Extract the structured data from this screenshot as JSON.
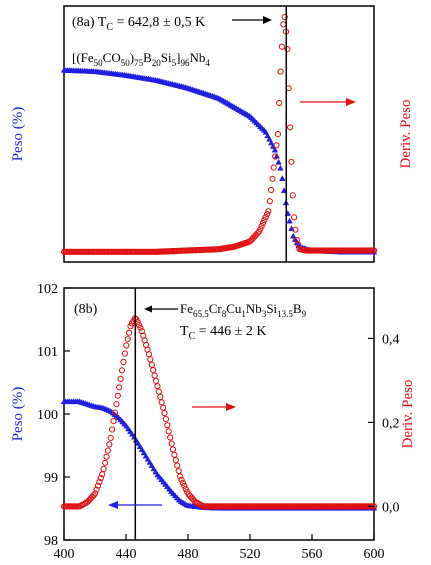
{
  "colors": {
    "weight": "#1f1fe0",
    "deriv": "#e01010",
    "axis": "#000000"
  },
  "chart_data": [
    {
      "type": "scatter",
      "panel_label": "(8a)",
      "tc_prefix": "T",
      "tc_sub": "C",
      "tc_value": " = 642,8 ± 0,5 K",
      "composition": [
        {
          "t": "[(Fe",
          "sub": false
        },
        {
          "t": "50",
          "sub": true
        },
        {
          "t": "CO",
          "sub": false
        },
        {
          "t": "50",
          "sub": true
        },
        {
          "t": ")",
          "sub": false
        },
        {
          "t": "75",
          "sub": true
        },
        {
          "t": "B",
          "sub": false
        },
        {
          "t": "20",
          "sub": true
        },
        {
          "t": "Si",
          "sub": false
        },
        {
          "t": "5",
          "sub": true
        },
        {
          "t": "]",
          "sub": false
        },
        {
          "t": "96",
          "sub": true
        },
        {
          "t": "Nb",
          "sub": false
        },
        {
          "t": "4",
          "sub": true
        }
      ],
      "ylabel": "Peso (%)",
      "y2label": "Deriv. Peso",
      "xlim": [
        0,
        1
      ],
      "vline_x": 0.717,
      "series": [
        {
          "name": "Peso",
          "marker": "filled-triangle",
          "color_key": "weight",
          "x": [
            0.0,
            0.1,
            0.2,
            0.3,
            0.4,
            0.5,
            0.6,
            0.65,
            0.68,
            0.7,
            0.72,
            0.74,
            0.76,
            0.8,
            0.9,
            1.0
          ],
          "y": [
            0.75,
            0.745,
            0.73,
            0.71,
            0.68,
            0.64,
            0.57,
            0.51,
            0.44,
            0.36,
            0.2,
            0.1,
            0.06,
            0.045,
            0.04,
            0.04
          ]
        },
        {
          "name": "Deriv. Peso",
          "marker": "open-circle",
          "color_key": "deriv",
          "x": [
            0.0,
            0.1,
            0.2,
            0.3,
            0.4,
            0.5,
            0.55,
            0.6,
            0.63,
            0.66,
            0.69,
            0.7,
            0.71,
            0.72,
            0.73,
            0.74,
            0.75,
            0.76,
            0.78,
            0.8,
            0.9,
            1.0
          ],
          "y": [
            0.04,
            0.04,
            0.04,
            0.04,
            0.045,
            0.05,
            0.06,
            0.08,
            0.12,
            0.2,
            0.5,
            0.78,
            0.98,
            0.85,
            0.5,
            0.2,
            0.09,
            0.05,
            0.045,
            0.045,
            0.045,
            0.045
          ]
        }
      ]
    },
    {
      "type": "scatter",
      "panel_label": "(8b)",
      "tc_prefix": "T",
      "tc_sub": "C",
      "tc_value": " = 446 ± 2 K",
      "composition": [
        {
          "t": "Fe",
          "sub": false
        },
        {
          "t": "65.5",
          "sub": true
        },
        {
          "t": "Cr",
          "sub": false
        },
        {
          "t": "8",
          "sub": true
        },
        {
          "t": "Cu",
          "sub": false
        },
        {
          "t": "1",
          "sub": true
        },
        {
          "t": "Nb",
          "sub": false
        },
        {
          "t": "3",
          "sub": true
        },
        {
          "t": "Si",
          "sub": false
        },
        {
          "t": "13.5",
          "sub": true
        },
        {
          "t": "B",
          "sub": false
        },
        {
          "t": "9",
          "sub": true
        }
      ],
      "xlabel": "",
      "ylabel": "Peso (%)",
      "y2label": "Deriv. Peso",
      "xlim": [
        400,
        600
      ],
      "ylim": [
        98,
        102
      ],
      "y2lim": [
        -0.08,
        0.52
      ],
      "x_ticks": [
        400,
        440,
        480,
        520,
        560,
        600
      ],
      "x_tick_labels": [
        "400",
        "440",
        "480",
        "520",
        "560",
        "600"
      ],
      "y_ticks": [
        98,
        99,
        100,
        101,
        102
      ],
      "y_tick_labels": [
        "98",
        "99",
        "100",
        "101",
        "102"
      ],
      "y2_ticks": [
        0.0,
        0.2,
        0.4
      ],
      "y2_tick_labels": [
        "0,0",
        "0,2",
        "0,4"
      ],
      "vline_x": 446,
      "series": [
        {
          "name": "Peso",
          "marker": "filled-triangle",
          "color_key": "weight",
          "x": [
            400,
            410,
            420,
            425,
            430,
            435,
            440,
            445,
            450,
            455,
            460,
            465,
            470,
            475,
            480,
            490,
            500,
            520,
            540,
            560,
            580,
            600
          ],
          "y": [
            100.2,
            100.2,
            100.12,
            100.1,
            100.05,
            99.95,
            99.82,
            99.65,
            99.45,
            99.25,
            99.05,
            98.9,
            98.75,
            98.62,
            98.55,
            98.52,
            98.51,
            98.51,
            98.51,
            98.51,
            98.51,
            98.51
          ]
        },
        {
          "name": "Deriv. Peso",
          "marker": "open-circle",
          "color_key": "deriv",
          "x": [
            400,
            410,
            415,
            420,
            425,
            430,
            435,
            440,
            443,
            446,
            450,
            455,
            460,
            465,
            470,
            475,
            480,
            485,
            490,
            500,
            520,
            540,
            560,
            580,
            600
          ],
          "y": [
            0.0,
            0.0,
            0.01,
            0.03,
            0.08,
            0.16,
            0.27,
            0.38,
            0.43,
            0.45,
            0.42,
            0.36,
            0.29,
            0.22,
            0.14,
            0.07,
            0.03,
            0.01,
            0.0,
            0.0,
            0.0,
            0.0,
            0.0,
            0.0,
            0.0
          ]
        }
      ]
    }
  ]
}
